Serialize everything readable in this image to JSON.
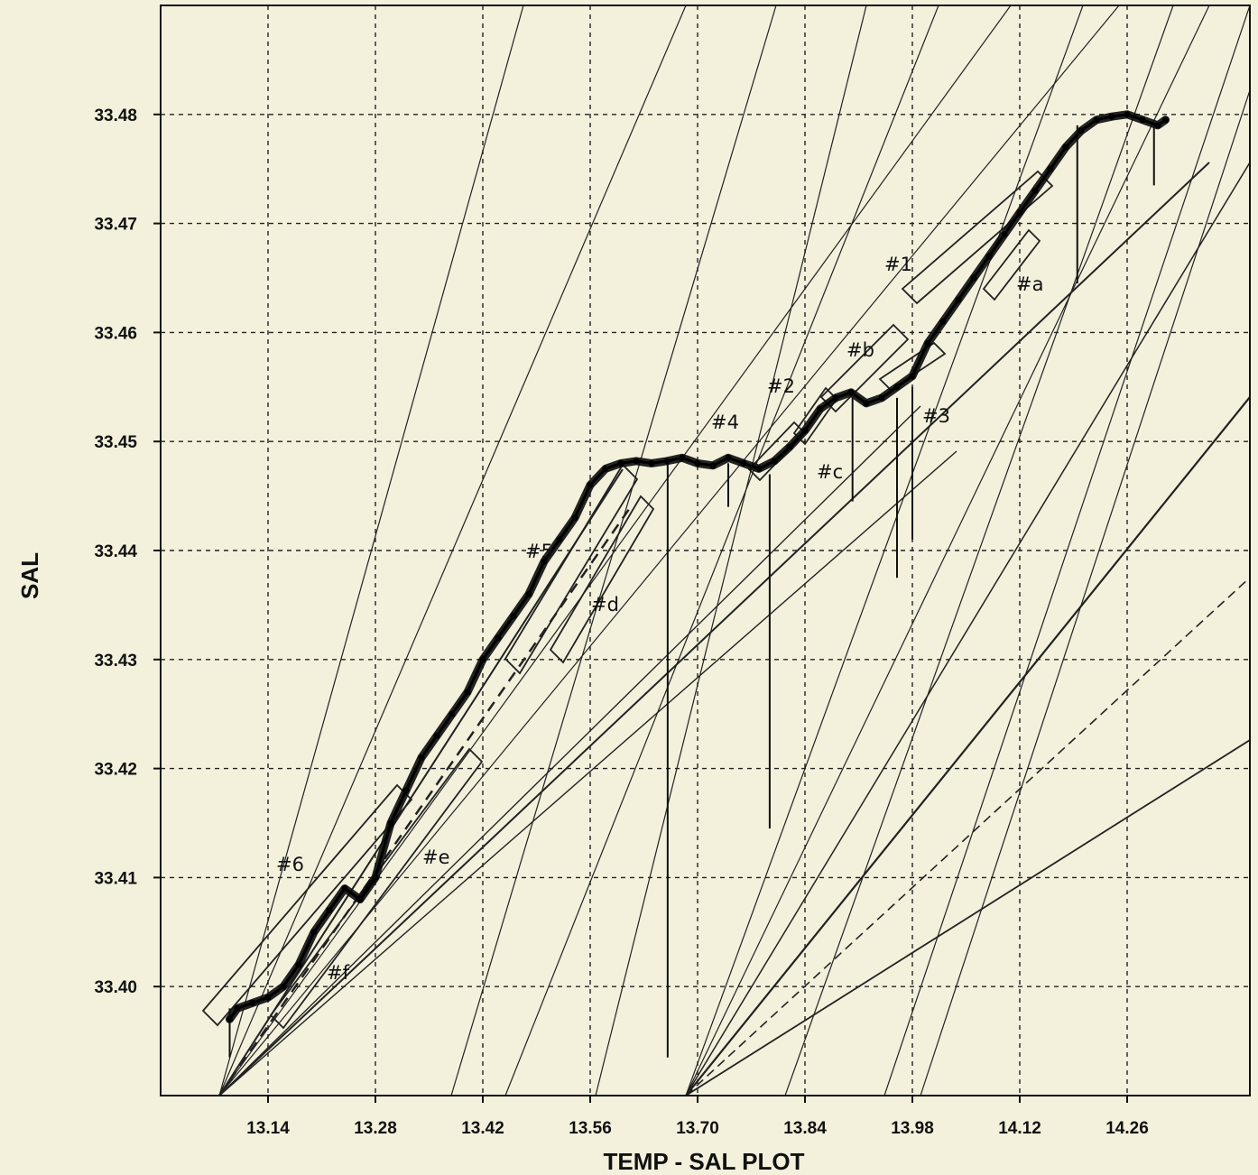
{
  "chart_data": {
    "type": "scatter",
    "title": "",
    "xlabel": "TEMP - SAL PLOT",
    "ylabel": "SAL",
    "xlim": [
      13.0,
      14.42
    ],
    "ylim": [
      33.39,
      33.49
    ],
    "grid": true,
    "x_ticks": [
      "13.14",
      "13.28",
      "13.42",
      "13.56",
      "13.70",
      "13.84",
      "13.98",
      "14.12",
      "14.26"
    ],
    "y_ticks": [
      "33.40",
      "33.41",
      "33.42",
      "33.43",
      "33.44",
      "33.45",
      "33.46",
      "33.47",
      "33.48"
    ],
    "series": [
      {
        "x": [
          13.09,
          13.1,
          13.12,
          13.14,
          13.16,
          13.18,
          13.2,
          13.22,
          13.24,
          13.26,
          13.28,
          13.3,
          13.32,
          13.34,
          13.36,
          13.38,
          13.4,
          13.42,
          13.44,
          13.46,
          13.48,
          13.5,
          13.52,
          13.54,
          13.56,
          13.58,
          13.6,
          13.62,
          13.64,
          13.66,
          13.68,
          13.7,
          13.72,
          13.74,
          13.76,
          13.78,
          13.8,
          13.82,
          13.84,
          13.86,
          13.88,
          13.9,
          13.92,
          13.94,
          13.96,
          13.98,
          14.0,
          14.02,
          14.04,
          14.06,
          14.08,
          14.1,
          14.12,
          14.14,
          14.16,
          14.18,
          14.2,
          14.22,
          14.24,
          14.26,
          14.28,
          14.3,
          14.31
        ],
        "y": [
          33.397,
          33.398,
          33.3985,
          33.399,
          33.4,
          33.402,
          33.405,
          33.407,
          33.409,
          33.408,
          33.41,
          33.415,
          33.418,
          33.421,
          33.423,
          33.425,
          33.427,
          33.43,
          33.432,
          33.434,
          33.436,
          33.439,
          33.441,
          33.443,
          33.446,
          33.4475,
          33.448,
          33.4482,
          33.448,
          33.4482,
          33.4485,
          33.448,
          33.4478,
          33.4485,
          33.448,
          33.4475,
          33.4482,
          33.4495,
          33.451,
          33.453,
          33.454,
          33.4545,
          33.4535,
          33.454,
          33.455,
          33.456,
          33.459,
          33.461,
          33.463,
          33.465,
          33.467,
          33.469,
          33.471,
          33.473,
          33.475,
          33.477,
          33.4785,
          33.4795,
          33.4798,
          33.48,
          33.4795,
          33.479,
          33.4795
        ]
      }
    ],
    "annotations": [
      "#1",
      "#2",
      "#3",
      "#4",
      "#5",
      "#6",
      "#a",
      "#b",
      "#c",
      "#d",
      "#e",
      "#f"
    ]
  }
}
